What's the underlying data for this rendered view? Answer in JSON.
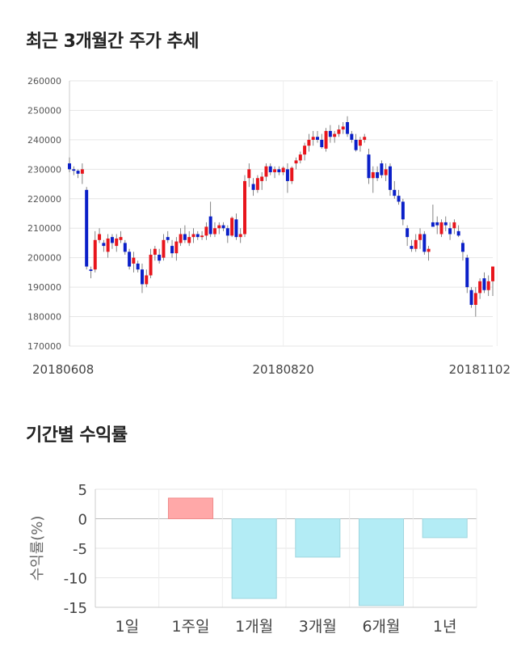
{
  "section1": {
    "title": "최근 3개월간 주가 추세"
  },
  "section2": {
    "title": "기간별 수익률"
  },
  "colors": {
    "up": "#e8151c",
    "down": "#0a1fc8",
    "pos_bar": "#ffa8a8",
    "neg_bar": "#b3ecf5"
  },
  "chart_data": [
    {
      "type": "candlestick",
      "title": "최근 3개월간 주가 추세",
      "ylim": [
        170000,
        260000
      ],
      "y_ticks": [
        170000,
        180000,
        190000,
        200000,
        210000,
        220000,
        230000,
        240000,
        250000,
        260000
      ],
      "x_tick_labels": [
        {
          "label": "20180608",
          "index": 0
        },
        {
          "label": "20180820",
          "index": 50
        },
        {
          "label": "20181102",
          "index": 100
        }
      ],
      "grid": true,
      "candles": [
        [
          232000,
          234000,
          229000,
          230000
        ],
        [
          230000,
          231000,
          228000,
          229500
        ],
        [
          229500,
          230000,
          227000,
          228500
        ],
        [
          228500,
          232000,
          225000,
          230000
        ],
        [
          223000,
          224000,
          196000,
          197000
        ],
        [
          196000,
          197000,
          193000,
          195500
        ],
        [
          196000,
          209000,
          195000,
          206000
        ],
        [
          206000,
          210000,
          205000,
          208000
        ],
        [
          205000,
          206000,
          202000,
          204000
        ],
        [
          202000,
          208000,
          200000,
          206500
        ],
        [
          207000,
          208000,
          203000,
          205000
        ],
        [
          204000,
          208000,
          202000,
          206500
        ],
        [
          206000,
          209000,
          205000,
          207000
        ],
        [
          205000,
          206000,
          201000,
          202000
        ],
        [
          202000,
          203000,
          196000,
          197000
        ],
        [
          198000,
          202000,
          195000,
          200000
        ],
        [
          198000,
          199000,
          195000,
          196000
        ],
        [
          196000,
          198000,
          188000,
          191000
        ],
        [
          191000,
          196000,
          190000,
          194000
        ],
        [
          194000,
          203000,
          193000,
          201000
        ],
        [
          201000,
          204000,
          199000,
          203000
        ],
        [
          201000,
          203000,
          198000,
          199000
        ],
        [
          200000,
          208000,
          199000,
          206000
        ],
        [
          207000,
          209000,
          205000,
          206000
        ],
        [
          204000,
          206000,
          200000,
          201500
        ],
        [
          201500,
          207000,
          199000,
          205500
        ],
        [
          205000,
          210000,
          204000,
          208000
        ],
        [
          208000,
          211000,
          205000,
          206000
        ],
        [
          205000,
          209000,
          204000,
          207000
        ],
        [
          207000,
          210000,
          205000,
          208000
        ],
        [
          208000,
          209000,
          206000,
          207000
        ],
        [
          207000,
          209000,
          206000,
          207500
        ],
        [
          207500,
          212000,
          206000,
          210500
        ],
        [
          214000,
          219000,
          207000,
          208000
        ],
        [
          208000,
          212000,
          207000,
          210000
        ],
        [
          210000,
          212000,
          208000,
          211000
        ],
        [
          211000,
          212000,
          209000,
          210000
        ],
        [
          210000,
          211000,
          205000,
          207500
        ],
        [
          207500,
          214000,
          207000,
          213500
        ],
        [
          213000,
          215000,
          206000,
          207000
        ],
        [
          207000,
          210000,
          205000,
          208000
        ],
        [
          208000,
          228000,
          207000,
          226000
        ],
        [
          227000,
          232000,
          224000,
          230000
        ],
        [
          225000,
          227000,
          221000,
          223000
        ],
        [
          223000,
          228000,
          222000,
          227000
        ],
        [
          226000,
          229000,
          223000,
          227500
        ],
        [
          227500,
          232000,
          226000,
          231000
        ],
        [
          231000,
          232000,
          228000,
          229000
        ],
        [
          229000,
          231000,
          227000,
          230000
        ],
        [
          230000,
          231000,
          228000,
          229000
        ],
        [
          229000,
          231000,
          228000,
          230500
        ],
        [
          230000,
          232000,
          222000,
          226000
        ],
        [
          226000,
          231000,
          225000,
          230500
        ],
        [
          232000,
          234000,
          230000,
          233000
        ],
        [
          233000,
          236000,
          232000,
          235000
        ],
        [
          235000,
          239000,
          233000,
          238000
        ],
        [
          238000,
          242000,
          236000,
          240000
        ],
        [
          240000,
          243000,
          238000,
          241000
        ],
        [
          241000,
          243000,
          239000,
          240000
        ],
        [
          240000,
          242000,
          237000,
          237500
        ],
        [
          237000,
          244000,
          236000,
          243000
        ],
        [
          243000,
          245000,
          239000,
          241000
        ],
        [
          241000,
          243000,
          239000,
          242000
        ],
        [
          242000,
          245000,
          241000,
          243500
        ],
        [
          243500,
          246000,
          242000,
          244500
        ],
        [
          246000,
          248000,
          241000,
          242000
        ],
        [
          242000,
          243000,
          239000,
          240000
        ],
        [
          240000,
          242000,
          236000,
          236500
        ],
        [
          238000,
          241000,
          236000,
          240000
        ],
        [
          240000,
          242000,
          239000,
          241000
        ],
        [
          235000,
          237000,
          225000,
          227000
        ],
        [
          227000,
          231000,
          222000,
          229000
        ],
        [
          229000,
          231000,
          226000,
          227000
        ],
        [
          232000,
          233000,
          227000,
          228000
        ],
        [
          228000,
          232000,
          226000,
          230000
        ],
        [
          231000,
          232000,
          221000,
          223000
        ],
        [
          223000,
          226000,
          220000,
          221000
        ],
        [
          221000,
          223000,
          218000,
          219000
        ],
        [
          219000,
          220000,
          211000,
          213000
        ],
        [
          210000,
          211000,
          204000,
          207000
        ],
        [
          204000,
          206000,
          202000,
          203000
        ],
        [
          203000,
          208000,
          202000,
          206000
        ],
        [
          206000,
          210000,
          203000,
          208000
        ],
        [
          208000,
          209000,
          201000,
          202000
        ],
        [
          202000,
          204000,
          199000,
          203000
        ],
        [
          212000,
          218000,
          211000,
          210500
        ],
        [
          212000,
          214000,
          208000,
          211000
        ],
        [
          208000,
          213000,
          207000,
          212000
        ],
        [
          212000,
          214000,
          209000,
          211000
        ],
        [
          210000,
          212000,
          206000,
          208000
        ],
        [
          210000,
          213000,
          208000,
          212000
        ],
        [
          209000,
          211000,
          207000,
          207500
        ],
        [
          205000,
          206000,
          199000,
          202000
        ],
        [
          200000,
          201000,
          188000,
          190000
        ],
        [
          189000,
          190000,
          183000,
          184000
        ],
        [
          184000,
          190000,
          180000,
          188000
        ],
        [
          188000,
          193000,
          186000,
          192000
        ],
        [
          193000,
          195000,
          188000,
          189000
        ],
        [
          189000,
          194000,
          187000,
          192000
        ],
        [
          192000,
          197000,
          187000,
          197000
        ]
      ]
    },
    {
      "type": "bar",
      "title": "기간별 수익률",
      "ylabel": "수익률(%)",
      "ylim": [
        -15,
        5
      ],
      "y_ticks": [
        5,
        0,
        -5,
        -10,
        -15
      ],
      "categories": [
        "1일",
        "1주일",
        "1개월",
        "3개월",
        "6개월",
        "1년"
      ],
      "values": [
        0,
        3.5,
        -13.5,
        -6.5,
        -14.7,
        -3.2
      ]
    }
  ]
}
